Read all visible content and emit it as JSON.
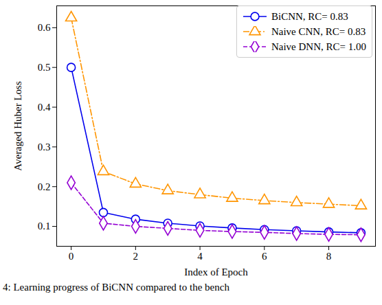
{
  "chart_data": {
    "type": "line",
    "x_label": "Index of Epoch",
    "y_label": "Averaged Huber Loss",
    "caption": "4: Learning progress of BiCNN compared to the bench",
    "x": [
      0,
      1,
      2,
      3,
      4,
      5,
      6,
      7,
      8,
      9
    ],
    "series": [
      {
        "name": "BiCNN, RC= 0.83",
        "color": "#0000ee",
        "marker": "circle",
        "line_style": "solid",
        "values": [
          0.5,
          0.135,
          0.118,
          0.108,
          0.101,
          0.096,
          0.092,
          0.089,
          0.086,
          0.084
        ]
      },
      {
        "name": "Naive CNN, RC= 0.83",
        "color": "#ff9500",
        "marker": "triangle",
        "line_style": "dashdot",
        "values": [
          0.625,
          0.238,
          0.207,
          0.19,
          0.18,
          0.171,
          0.165,
          0.16,
          0.156,
          0.152
        ]
      },
      {
        "name": "Naive DNN, RC= 1.00",
        "color": "#9400d3",
        "marker": "diamond",
        "line_style": "dashed",
        "values": [
          0.21,
          0.108,
          0.1,
          0.095,
          0.09,
          0.087,
          0.085,
          0.082,
          0.08,
          0.079
        ]
      }
    ],
    "xlim": [
      -0.45,
      9.45
    ],
    "ylim": [
      0.05,
      0.655
    ],
    "xticks": [
      0,
      2,
      4,
      6,
      8
    ],
    "yticks": [
      0.1,
      0.2,
      0.3,
      0.4,
      0.5,
      0.6
    ],
    "grid": false,
    "legend": "upper right"
  }
}
